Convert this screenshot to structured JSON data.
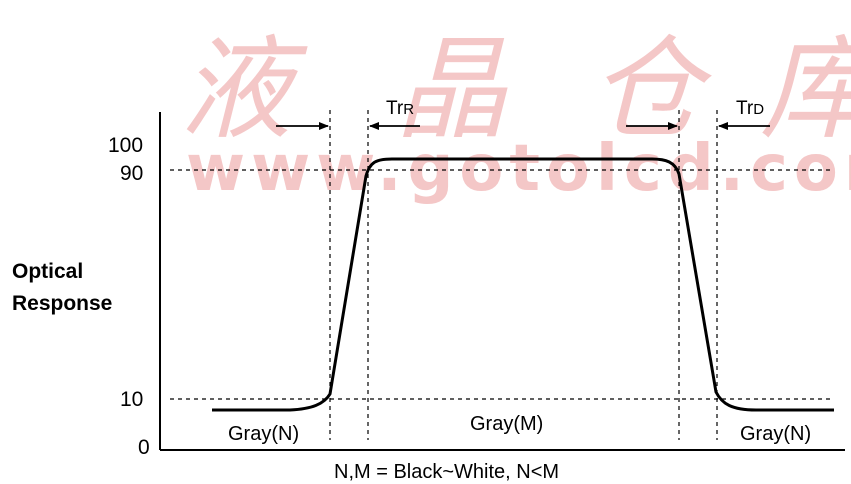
{
  "watermark": {
    "chinese": [
      "液",
      "晶",
      "仓",
      "库"
    ],
    "url": "www.gotolcd.com"
  },
  "y_axis": {
    "label_line1": "Optical",
    "label_line2": "Response",
    "ticks": [
      "100",
      "90",
      "10",
      "0"
    ]
  },
  "timing": {
    "rise": {
      "main": "Tr",
      "sub": "R"
    },
    "decay": {
      "main": "Tr",
      "sub": "D"
    }
  },
  "regions": {
    "left": "Gray(N)",
    "middle": "Gray(M)",
    "right": "Gray(N)"
  },
  "caption": "N,M = Black~White,  N<M",
  "colors": {
    "curve": "#000000",
    "watermark": "#f4c7c7"
  }
}
